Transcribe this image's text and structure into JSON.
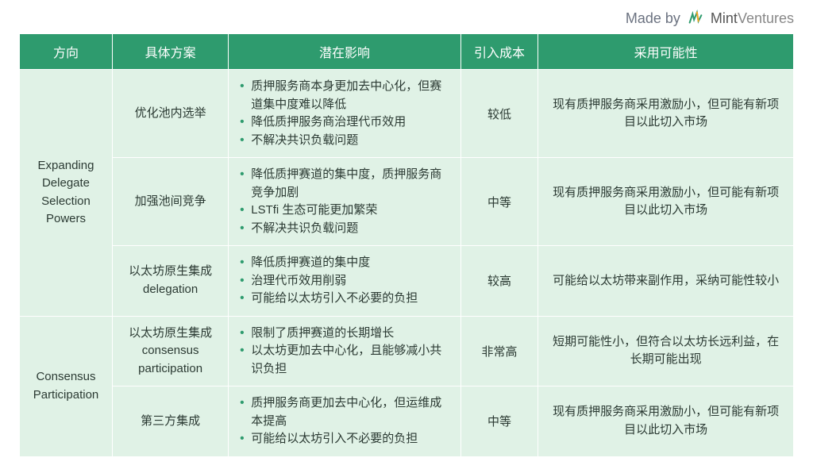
{
  "attribution": {
    "prefix": "Made by",
    "brand_main": "Mint",
    "brand_sub": "Ventures"
  },
  "headers": {
    "direction": "方向",
    "plan": "具体方案",
    "impact": "潜在影响",
    "cost": "引入成本",
    "adoption": "采用可能性"
  },
  "groups": [
    {
      "category": "Expanding Delegate Selection Powers",
      "rows": [
        {
          "plan": "优化池内选举",
          "impacts": [
            "质押服务商本身更加去中心化，但赛道集中度难以降低",
            "降低质押服务商治理代币效用",
            "不解决共识负载问题"
          ],
          "cost": "较低",
          "adoption": "现有质押服务商采用激励小，但可能有新项目以此切入市场"
        },
        {
          "plan": "加强池间竞争",
          "impacts": [
            "降低质押赛道的集中度，质押服务商竞争加剧",
            "LSTfi 生态可能更加繁荣",
            "不解决共识负载问题"
          ],
          "cost": "中等",
          "adoption": "现有质押服务商采用激励小，但可能有新项目以此切入市场"
        },
        {
          "plan": "以太坊原生集成 delegation",
          "impacts": [
            "降低质押赛道的集中度",
            "治理代币效用削弱",
            "可能给以太坊引入不必要的负担"
          ],
          "cost": "较高",
          "adoption": "可能给以太坊带来副作用，采纳可能性较小"
        }
      ]
    },
    {
      "category": "Consensus Participation",
      "rows": [
        {
          "plan": "以太坊原生集成 consensus participation",
          "impacts": [
            "限制了质押赛道的长期增长",
            "以太坊更加去中心化，且能够减小共识负担"
          ],
          "cost": "非常高",
          "adoption": "短期可能性小，但符合以太坊长远利益，在长期可能出现"
        },
        {
          "plan": "第三方集成",
          "impacts": [
            "质押服务商更加去中心化，但运维成本提高",
            "可能给以太坊引入不必要的负担"
          ],
          "cost": "中等",
          "adoption": "现有质押服务商采用激励小，但可能有新项目以此切入市场"
        }
      ]
    }
  ],
  "colors": {
    "header_bg": "#2e9b6e",
    "cell_bg": "#e0f2e6",
    "bullet": "#2e9b6e",
    "text": "#2b3a33"
  }
}
